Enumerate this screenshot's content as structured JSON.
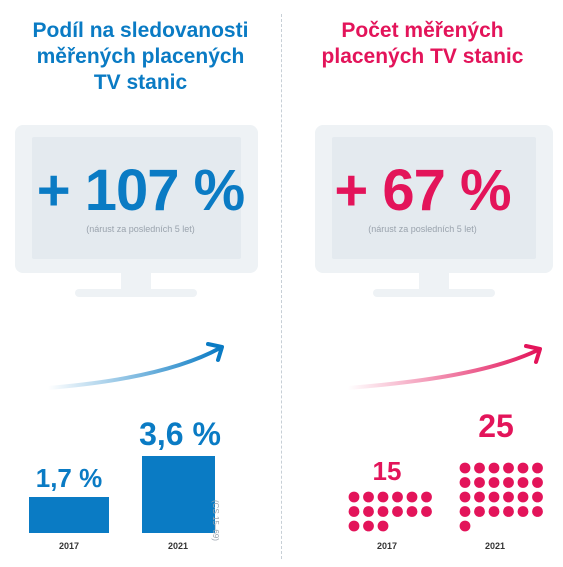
{
  "colors": {
    "blue": "#0a7bc4",
    "pink": "#e3145a",
    "tv_frame": "#eef2f5",
    "tv_screen": "#e4eaef",
    "muted": "#9aa3ad"
  },
  "left_panel": {
    "title_lines": [
      "Podíl na sledovanosti",
      "měřených placených",
      "TV stanic"
    ],
    "big_number": "+ 107 %",
    "growth_note": "(nárust za posledních 5 let)",
    "side_note": "(CS 15–69)"
  },
  "right_panel": {
    "title_lines": [
      "Počet měřených",
      "placených TV stanic"
    ],
    "big_number": "+ 67 %",
    "growth_note": "(nárust za posledních 5 let)"
  },
  "chart_data": [
    {
      "type": "bar",
      "title": "Podíl na sledovanosti měřených placených TV stanic",
      "categories": [
        "2017",
        "2021"
      ],
      "values": [
        1.7,
        3.6
      ],
      "value_labels": [
        "1,7 %",
        "3,6 %"
      ],
      "unit": "%",
      "ylim": [
        0,
        3.6
      ],
      "color": "#0a7bc4"
    },
    {
      "type": "bar",
      "title": "Počet měřených placených TV stanic",
      "categories": [
        "2017",
        "2021"
      ],
      "values": [
        15,
        25
      ],
      "value_labels": [
        "15",
        "25"
      ],
      "color": "#e3145a"
    }
  ]
}
